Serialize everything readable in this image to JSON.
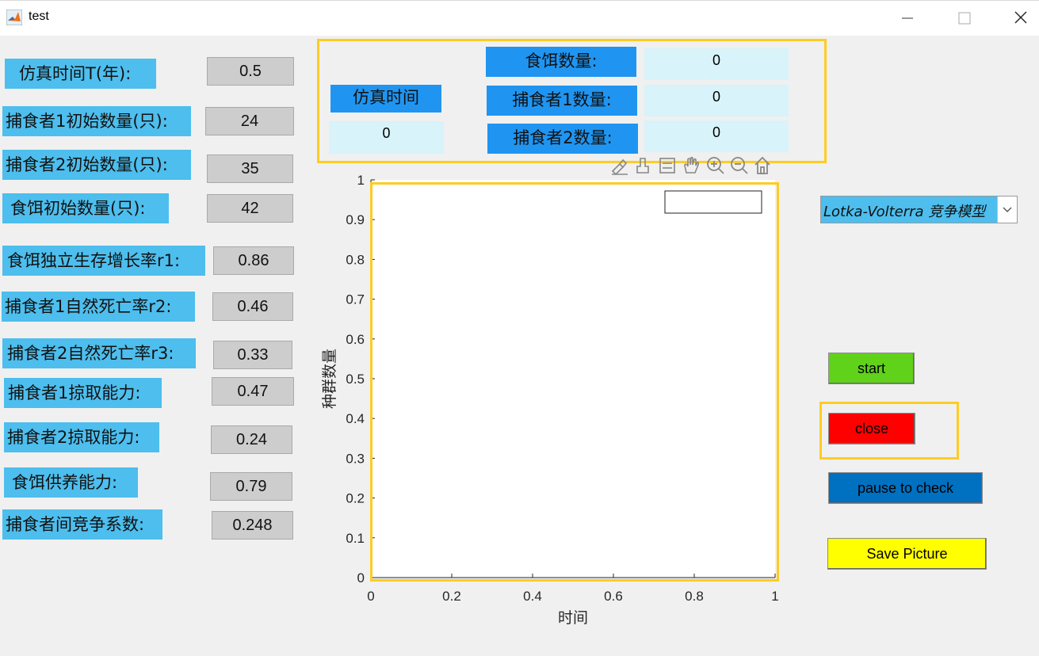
{
  "window": {
    "title": "test"
  },
  "params": [
    {
      "label": "仿真时间T(年):",
      "value": "0.5"
    },
    {
      "label": "捕食者1初始数量(只):",
      "value": "24"
    },
    {
      "label": "捕食者2初始数量(只):",
      "value": "35"
    },
    {
      "label": "食饵初始数量(只):",
      "value": "42"
    },
    {
      "label": "食饵独立生存增长率r1:",
      "value": "0.86"
    },
    {
      "label": "捕食者1自然死亡率r2:",
      "value": "0.46"
    },
    {
      "label": "捕食者2自然死亡率r3:",
      "value": "0.33"
    },
    {
      "label": "捕食者1掠取能力:",
      "value": "0.47"
    },
    {
      "label": "捕食者2掠取能力:",
      "value": "0.24"
    },
    {
      "label": "食饵供养能力:",
      "value": "0.79"
    },
    {
      "label": "捕食者间竞争系数:",
      "value": "0.248"
    }
  ],
  "counters": {
    "sim_time_label": "仿真时间",
    "sim_time_value": "0",
    "prey_label": "食饵数量:",
    "prey_value": "0",
    "pred1_label": "捕食者1数量:",
    "pred1_value": "0",
    "pred2_label": "捕食者2数量:",
    "pred2_value": "0"
  },
  "toolbar": {
    "icons": [
      "brush-icon",
      "data-tips-icon",
      "legend-icon",
      "pan-hand-icon",
      "zoom-in-icon",
      "zoom-out-icon",
      "home-icon"
    ]
  },
  "chart_data": {
    "type": "line",
    "series": [],
    "xlabel": "时间",
    "ylabel": "种群数量",
    "xlim": [
      0,
      1
    ],
    "ylim": [
      0,
      1
    ],
    "xticks": [
      "0",
      "0.2",
      "0.4",
      "0.6",
      "0.8",
      "1"
    ],
    "yticks": [
      "0",
      "0.1",
      "0.2",
      "0.3",
      "0.4",
      "0.5",
      "0.6",
      "0.7",
      "0.8",
      "0.9",
      "1"
    ],
    "legend": "top-right",
    "grid": false
  },
  "model_select": {
    "selected": "Lotka-Volterra 竞争模型"
  },
  "buttons": {
    "start": "start",
    "close": "close",
    "pause": "pause to check",
    "save": "Save Picture"
  },
  "colors": {
    "label_bg": "#4dbeed",
    "counter_label_bg": "#1f95f1",
    "highlight": "#ffcc22",
    "start": "#60d21a",
    "close": "#ff0000",
    "pause": "#0070c0",
    "save": "#ffff00"
  }
}
